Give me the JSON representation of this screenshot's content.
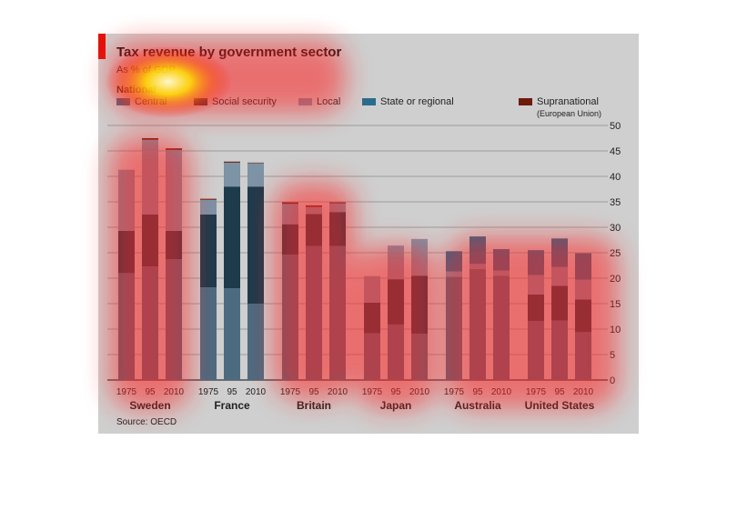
{
  "chart_data": {
    "type": "bar",
    "stacked": true,
    "title": "Tax revenue by government sector",
    "subtitle": "As % of GDP",
    "legend_group": "National",
    "legend": [
      {
        "key": "central",
        "label": "Central",
        "color": "#4d6b80"
      },
      {
        "key": "social",
        "label": "Social security",
        "color": "#1e3b4c"
      },
      {
        "key": "local",
        "label": "Local",
        "color": "#7d93a6"
      },
      {
        "key": "state",
        "label": "State or regional",
        "color": "#2a6c8e"
      },
      {
        "key": "supra",
        "label": "Supranational",
        "note": "(European Union)",
        "color": "#6e1a0d"
      }
    ],
    "ylim": [
      0,
      50
    ],
    "yticks": [
      "0",
      "5",
      "10",
      "15",
      "20",
      "25",
      "30",
      "35",
      "40",
      "45",
      "50"
    ],
    "groups": [
      {
        "name": "Sweden",
        "bars": [
          {
            "year": "1975",
            "central": 21,
            "social": 8.3,
            "local": 12,
            "state": 0,
            "supra": 0
          },
          {
            "year": "95",
            "central": 22.3,
            "social": 10.2,
            "local": 14.7,
            "state": 0,
            "supra": 0.3
          },
          {
            "year": "2010",
            "central": 23.7,
            "social": 5.6,
            "local": 15.9,
            "state": 0,
            "supra": 0.3
          }
        ]
      },
      {
        "name": "France",
        "bars": [
          {
            "year": "1975",
            "central": 18.2,
            "social": 14.3,
            "local": 2.9,
            "state": 0,
            "supra": 0.2
          },
          {
            "year": "95",
            "central": 18,
            "social": 20,
            "local": 4.7,
            "state": 0,
            "supra": 0.2
          },
          {
            "year": "2010",
            "central": 15,
            "social": 23,
            "local": 4.6,
            "state": 0,
            "supra": 0.1
          }
        ]
      },
      {
        "name": "Britain",
        "bars": [
          {
            "year": "1975",
            "central": 24.6,
            "social": 6,
            "local": 4,
            "state": 0,
            "supra": 0.3
          },
          {
            "year": "95",
            "central": 26.3,
            "social": 6.3,
            "local": 1.4,
            "state": 0,
            "supra": 0.3
          },
          {
            "year": "2010",
            "central": 26.3,
            "social": 6.7,
            "local": 1.7,
            "state": 0,
            "supra": 0.2
          }
        ]
      },
      {
        "name": "Japan",
        "bars": [
          {
            "year": "1975",
            "central": 9.2,
            "social": 6,
            "local": 5.2,
            "state": 0,
            "supra": 0
          },
          {
            "year": "95",
            "central": 10.9,
            "social": 8.9,
            "local": 6.6,
            "state": 0,
            "supra": 0
          },
          {
            "year": "2010",
            "central": 9.1,
            "social": 11.4,
            "local": 7.2,
            "state": 0,
            "supra": 0
          }
        ]
      },
      {
        "name": "Australia",
        "bars": [
          {
            "year": "1975",
            "central": 20.3,
            "social": 0,
            "local": 1,
            "state": 4,
            "supra": 0
          },
          {
            "year": "95",
            "central": 21.8,
            "social": 0,
            "local": 1,
            "state": 5.4,
            "supra": 0
          },
          {
            "year": "2010",
            "central": 20.5,
            "social": 0,
            "local": 1,
            "state": 4.2,
            "supra": 0
          }
        ]
      },
      {
        "name": "United States",
        "bars": [
          {
            "year": "1975",
            "central": 11.6,
            "social": 5.2,
            "local": 3.8,
            "state": 4.9,
            "supra": 0
          },
          {
            "year": "95",
            "central": 11.7,
            "social": 6.8,
            "local": 3.7,
            "state": 5.6,
            "supra": 0
          },
          {
            "year": "2010",
            "central": 9.4,
            "social": 6.4,
            "local": 3.9,
            "state": 5.2,
            "supra": 0
          }
        ]
      }
    ],
    "source": "Source: OECD"
  }
}
